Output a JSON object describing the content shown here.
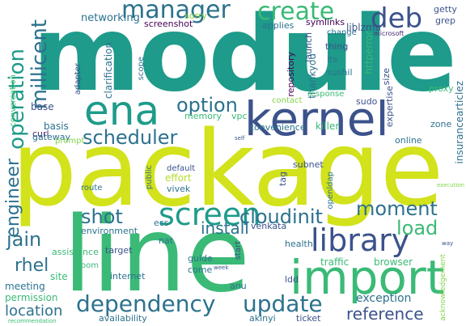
{
  "colors": {
    "yellow": "#d2e21b",
    "teal": "#1e9b8a",
    "blue": "#2c728e",
    "navy": "#3b528b",
    "green": "#3aba76",
    "lightgreen": "#84d44b",
    "purple": "#440154",
    "indigo": "#472c7a",
    "lime": "#b5de2b"
  },
  "words": [
    "module",
    "package",
    "line",
    "kernel",
    "import",
    "ena",
    "library",
    "screen",
    "dependency",
    "update",
    "operation",
    "manager",
    "create",
    "deb",
    "option",
    "scheduler",
    "millicent",
    "engineer",
    "shot",
    "cloudinit",
    "moment",
    "load",
    "jain",
    "rhel",
    "reference",
    "install",
    "location",
    "exception",
    "networking",
    "screenshot",
    "symlinks",
    "liblzma",
    "getty",
    "grep",
    "sorry",
    "applies",
    "change",
    "microsoft",
    "thing",
    "lts",
    "launch",
    "httperror",
    "repository",
    "thankyou",
    "sushil",
    "clarification",
    "conversation",
    "adapter",
    "scope",
    "size",
    "expertise",
    "proxy",
    "insurancearticlez",
    "response",
    "contact",
    "sudo",
    "base",
    "basis",
    "curl",
    "gateway",
    "memory",
    "vpc",
    "convenience",
    "killer",
    "zone",
    "online",
    "prompt",
    "self",
    "subnet",
    "tag",
    "openldap",
    "public",
    "vivek",
    "default",
    "effort",
    "route",
    "environment",
    "ecs",
    "venkata",
    "execution",
    "target",
    "nat",
    "assistance",
    "guide",
    "come",
    "health",
    "start",
    "traffic",
    "browser",
    "week",
    "oom",
    "internet",
    "site",
    "meeting",
    "permission",
    "anu",
    "ldd",
    "availability",
    "akinyi",
    "ticket",
    "recommendation",
    "way",
    "acknowledgement"
  ]
}
